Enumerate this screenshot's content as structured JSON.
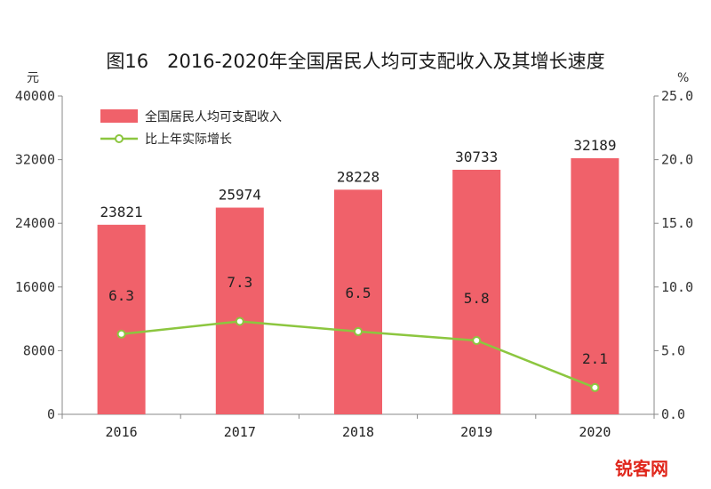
{
  "chart_data": {
    "type": "bar",
    "title": "图16　2016-2020年全国居民人均可支配收入及其增长速度",
    "categories": [
      "2016",
      "2017",
      "2018",
      "2019",
      "2020"
    ],
    "series": [
      {
        "name": "全国居民人均可支配收入",
        "type": "bar",
        "axis": "left",
        "color": "#f0616a",
        "values": [
          23821,
          25974,
          28228,
          30733,
          32189
        ]
      },
      {
        "name": "比上年实际增长",
        "type": "line",
        "axis": "right",
        "color": "#8cc63f",
        "values": [
          6.3,
          7.3,
          6.5,
          5.8,
          2.1
        ]
      }
    ],
    "y_left": {
      "unit": "元",
      "range": [
        0,
        40000
      ],
      "ticks": [
        "0",
        "8000",
        "16000",
        "24000",
        "32000",
        "40000"
      ]
    },
    "y_right": {
      "unit": "%",
      "range": [
        0,
        25
      ],
      "ticks": [
        "0.0",
        "5.0",
        "10.0",
        "15.0",
        "20.0",
        "25.0"
      ]
    },
    "bar_labels": [
      "23821",
      "25974",
      "28228",
      "30733",
      "32189"
    ],
    "line_labels": [
      "6.3",
      "7.3",
      "6.5",
      "5.8",
      "2.1"
    ],
    "legend_position": "top-left",
    "grid": false
  },
  "watermark": "锐客网"
}
